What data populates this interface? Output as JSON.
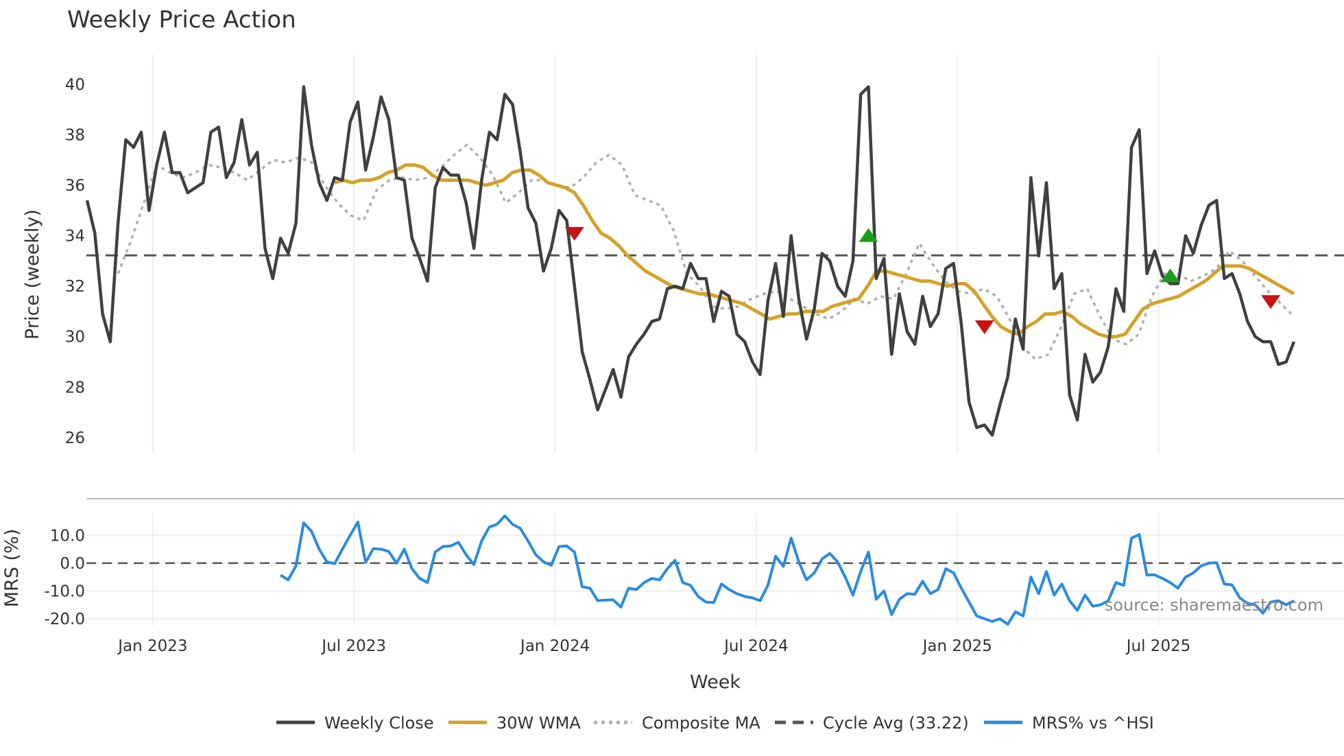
{
  "chart_data": [
    {
      "type": "line",
      "title": "Weekly Price Action",
      "xlabel": "Week",
      "ylabel": "Price (weekly)",
      "ylim": [
        25.4,
        41.0
      ],
      "yticks": [
        26,
        28,
        30,
        32,
        34,
        36,
        38,
        40
      ],
      "grid": true,
      "series": [
        {
          "name": "Weekly Close",
          "color": "#404040",
          "values": [
            35.4,
            34.1,
            30.9,
            29.8,
            34.5,
            37.8,
            37.5,
            38.1,
            35.0,
            36.8,
            38.1,
            36.5,
            36.5,
            35.7,
            35.9,
            36.1,
            38.1,
            38.3,
            36.3,
            36.9,
            38.6,
            36.8,
            37.3,
            33.5,
            32.3,
            33.9,
            33.3,
            34.5,
            39.9,
            37.6,
            36.1,
            35.4,
            36.3,
            36.2,
            38.5,
            39.3,
            36.6,
            37.9,
            39.5,
            38.6,
            36.3,
            36.2,
            33.9,
            33.1,
            32.2,
            35.9,
            36.7,
            36.4,
            36.4,
            35.3,
            33.5,
            36.2,
            38.1,
            37.8,
            39.6,
            39.2,
            37.3,
            35.1,
            34.5,
            32.6,
            33.5,
            35.0,
            34.6,
            32.0,
            29.4,
            28.3,
            27.1,
            27.9,
            28.7,
            27.6,
            29.2,
            29.7,
            30.1,
            30.6,
            30.7,
            31.9,
            32.0,
            31.9,
            32.9,
            32.3,
            32.3,
            30.6,
            31.8,
            31.6,
            30.1,
            29.8,
            29.0,
            28.5,
            31.4,
            32.9,
            30.8,
            34.0,
            31.5,
            29.9,
            31.1,
            33.3,
            33.0,
            32.0,
            31.6,
            33.0,
            39.6,
            39.9,
            32.3,
            33.1,
            29.3,
            31.7,
            30.2,
            29.7,
            31.6,
            30.4,
            30.9,
            32.7,
            32.9,
            30.5,
            27.4,
            26.4,
            26.5,
            26.1,
            27.3,
            28.4,
            30.7,
            29.5,
            36.3,
            33.2,
            36.1,
            31.9,
            32.5,
            27.7,
            26.7,
            29.3,
            28.2,
            28.6,
            29.6,
            31.9,
            31.0,
            37.5,
            38.2,
            32.5,
            33.4,
            32.4,
            32.1,
            32.1,
            34.0,
            33.3,
            34.4,
            35.2,
            35.4,
            32.3,
            32.5,
            31.7,
            30.6,
            30.0,
            29.8,
            29.8,
            28.9,
            29.0,
            29.8
          ]
        },
        {
          "name": "30W WMA",
          "color": "#d4a22a",
          "values": [
            36.1,
            36.2,
            36.1,
            36.2,
            36.2,
            36.3,
            36.5,
            36.6,
            36.8,
            36.8,
            36.7,
            36.4,
            36.2,
            36.2,
            36.2,
            36.2,
            36.1,
            36.0,
            36.1,
            36.2,
            36.5,
            36.6,
            36.6,
            36.4,
            36.1,
            36.0,
            35.9,
            35.7,
            35.2,
            34.6,
            34.1,
            33.9,
            33.6,
            33.2,
            32.9,
            32.6,
            32.4,
            32.2,
            32.0,
            31.9,
            31.8,
            31.7,
            31.7,
            31.6,
            31.5,
            31.4,
            31.3,
            31.1,
            30.9,
            30.7,
            30.8,
            30.9,
            30.9,
            31.0,
            31.0,
            31.0,
            31.2,
            31.3,
            31.4,
            31.5,
            32.0,
            32.6,
            32.6,
            32.5,
            32.4,
            32.3,
            32.2,
            32.2,
            32.1,
            32.0,
            32.1,
            32.1,
            31.8,
            31.3,
            30.8,
            30.4,
            30.2,
            30.1,
            30.4,
            30.6,
            30.9,
            30.9,
            31.0,
            30.8,
            30.5,
            30.3,
            30.1,
            30.0,
            30.0,
            30.1,
            30.6,
            31.1,
            31.3,
            31.4,
            31.5,
            31.6,
            31.8,
            32.0,
            32.2,
            32.5,
            32.8,
            32.8,
            32.8,
            32.7,
            32.5,
            32.3,
            32.1,
            31.9,
            31.7
          ],
          "x_start_index": 28,
          "note": "starts at week index 28; values listed for every 1.43 weeks approx, sampled"
        },
        {
          "name": "Composite MA",
          "color": "#b0b0b0",
          "values": [
            32.5,
            33.8,
            35.3,
            36.8,
            36.5,
            36.3,
            36.5,
            36.8,
            36.7,
            36.5,
            36.2,
            36.6,
            37.0,
            36.9,
            37.1,
            36.9,
            36.0,
            35.3,
            34.8,
            34.6,
            35.8,
            36.2,
            36.3,
            36.2,
            36.3,
            36.7,
            37.2,
            37.6,
            37.1,
            36.4,
            35.3,
            35.7,
            36.2,
            36.2,
            36.0,
            35.9,
            36.3,
            36.9,
            37.2,
            36.8,
            35.6,
            35.4,
            35.2,
            34.2,
            32.5,
            32.0,
            31.2,
            31.1,
            31.2,
            31.5,
            31.7,
            31.8,
            31.5,
            31.2,
            30.9,
            30.7,
            31.0,
            31.5,
            31.3,
            31.6,
            31.5,
            32.5,
            33.7,
            32.9,
            32.2,
            31.8,
            31.7,
            31.9,
            31.6,
            30.7,
            29.6,
            29.1,
            29.3,
            30.4,
            31.7,
            31.9,
            30.8,
            29.9,
            29.7,
            30.1,
            31.6,
            32.5,
            32.5,
            32.2,
            32.4,
            32.7,
            33.4,
            33.0,
            32.4,
            31.8,
            31.3,
            30.8
          ],
          "note": "sampled approximation"
        },
        {
          "name": "Cycle Avg (33.22)",
          "color": "#555555",
          "constant": 33.22
        }
      ],
      "markers": [
        {
          "kind": "sell",
          "color": "#cc1111",
          "week_index": 63,
          "value": 34.1
        },
        {
          "kind": "buy",
          "color": "#1a9e1a",
          "week_index": 101,
          "value": 34.0
        },
        {
          "kind": "sell",
          "color": "#cc1111",
          "week_index": 116,
          "value": 30.4
        },
        {
          "kind": "buy",
          "color": "#1a9e1a",
          "week_index": 140,
          "value": 32.4
        },
        {
          "kind": "sell",
          "color": "#cc1111",
          "week_index": 153,
          "value": 31.4
        }
      ]
    },
    {
      "type": "line",
      "ylabel": "MRS (%)",
      "ylim": [
        -22.5,
        18.0
      ],
      "yticks": [
        "10.0",
        "0.0",
        "-10.0",
        "-20.0"
      ],
      "ytick_values": [
        10,
        0,
        -10,
        -20
      ],
      "zero_line": true,
      "series": [
        {
          "name": "MRS% vs ^HSI",
          "color": "#2a8be0",
          "x_start_index": 25,
          "values": [
            -4.3,
            -6.0,
            -1.0,
            14.5,
            11.5,
            5.0,
            0.5,
            -0.2,
            5.0,
            10.0,
            14.8,
            0.3,
            5.2,
            5.0,
            4.2,
            0.0,
            5.0,
            -2.0,
            -5.5,
            -7.0,
            4.0,
            6.0,
            6.2,
            7.5,
            3.0,
            -0.5,
            8.0,
            13.0,
            14.0,
            17.0,
            14.0,
            12.5,
            8.0,
            3.0,
            0.5,
            -0.8,
            6.0,
            6.2,
            4.0,
            -8.5,
            -9.0,
            -13.5,
            -13.3,
            -13.2,
            -15.8,
            -9.0,
            -9.5,
            -7.0,
            -5.5,
            -6.0,
            -2.0,
            1.0,
            -7.0,
            -8.0,
            -12.0,
            -14.0,
            -14.2,
            -7.5,
            -9.5,
            -11.0,
            -12.0,
            -12.5,
            -13.5,
            -8.0,
            2.5,
            -1.2,
            9.0,
            0.5,
            -6.0,
            -3.5,
            1.5,
            3.5,
            0.5,
            -5.0,
            -11.5,
            -3.0,
            4.0,
            -13.0,
            -10.0,
            -18.5,
            -13.0,
            -11.0,
            -11.2,
            -6.5,
            -11.0,
            -9.5,
            -2.0,
            -3.5,
            -9.0,
            -14.0,
            -19.0,
            -20.0,
            -21.0,
            -20.0,
            -22.0,
            -17.5,
            -19.0,
            -5.0,
            -11.0,
            -3.0,
            -11.5,
            -7.5,
            -13.5,
            -17.0,
            -11.5,
            -15.5,
            -15.0,
            -13.5,
            -7.0,
            -8.0,
            9.0,
            10.3,
            -4.3,
            -4.2,
            -5.5,
            -7.0,
            -9.0,
            -5.0,
            -3.5,
            -1.0,
            0.0,
            0.2,
            -7.5,
            -7.8,
            -12.5,
            -14.5,
            -15.0,
            -18.0,
            -14.0,
            -13.5,
            -15.0,
            -13.5
          ]
        }
      ]
    }
  ],
  "x_axis": {
    "label": "Week",
    "ticks": [
      "Jan 2023",
      "Jul 2023",
      "Jan 2024",
      "Jul 2024",
      "Jan 2025",
      "Jul 2025"
    ],
    "tick_week_indices": [
      8.5,
      34.5,
      60.5,
      86.5,
      112.5,
      138.5
    ],
    "total_weeks": 157
  },
  "legend": [
    {
      "label": "Weekly Close",
      "color": "#404040",
      "style": "solid"
    },
    {
      "label": "30W WMA",
      "color": "#d4a22a",
      "style": "solid"
    },
    {
      "label": "Composite MA",
      "color": "#b0b0b0",
      "style": "dotted"
    },
    {
      "label": "Cycle Avg (33.22)",
      "color": "#555555",
      "style": "dashed"
    },
    {
      "label": "MRS% vs ^HSI",
      "color": "#2a8be0",
      "style": "solid"
    }
  ],
  "source": "source: sharemaestro.com"
}
